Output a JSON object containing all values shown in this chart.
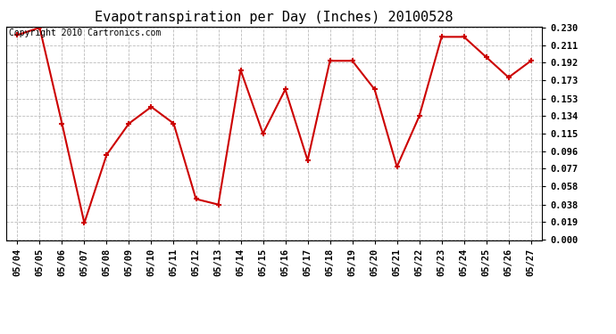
{
  "title": "Evapotranspiration per Day (Inches) 20100528",
  "copyright": "Copyright 2010 Cartronics.com",
  "dates": [
    "05/04",
    "05/05",
    "05/06",
    "05/07",
    "05/08",
    "05/09",
    "05/10",
    "05/11",
    "05/12",
    "05/13",
    "05/14",
    "05/15",
    "05/16",
    "05/17",
    "05/18",
    "05/19",
    "05/20",
    "05/21",
    "05/22",
    "05/23",
    "05/24",
    "05/25",
    "05/26",
    "05/27"
  ],
  "values": [
    0.222,
    0.23,
    0.126,
    0.018,
    0.092,
    0.126,
    0.144,
    0.126,
    0.044,
    0.038,
    0.184,
    0.115,
    0.163,
    0.086,
    0.194,
    0.194,
    0.163,
    0.079,
    0.134,
    0.22,
    0.22,
    0.198,
    0.176,
    0.194
  ],
  "ylim": [
    0.0,
    0.23
  ],
  "yticks": [
    0.0,
    0.019,
    0.038,
    0.058,
    0.077,
    0.096,
    0.115,
    0.134,
    0.153,
    0.173,
    0.192,
    0.211,
    0.23
  ],
  "line_color": "#cc0000",
  "marker": "+",
  "marker_color": "#cc0000",
  "bg_color": "#ffffff",
  "grid_color": "#bbbbbb",
  "title_fontsize": 11,
  "copyright_fontsize": 7,
  "tick_fontsize": 7.5,
  "ytick_fontsize": 7.5
}
